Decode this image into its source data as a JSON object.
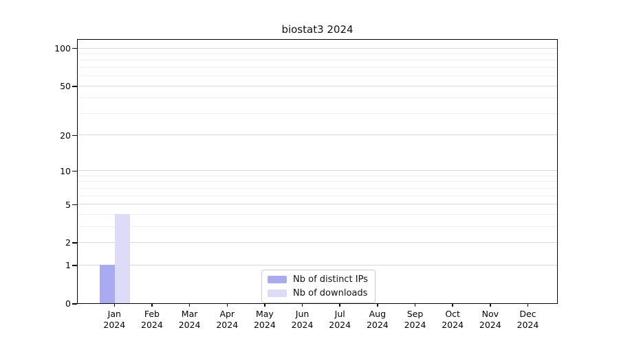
{
  "chart_data": {
    "type": "bar",
    "title": "biostat3 2024",
    "categories": [
      "Jan",
      "Feb",
      "Mar",
      "Apr",
      "May",
      "Jun",
      "Jul",
      "Aug",
      "Sep",
      "Oct",
      "Nov",
      "Dec"
    ],
    "category_year": "2024",
    "series": [
      {
        "name": "Nb of distinct IPs",
        "color": "#aaaaf2",
        "values": [
          1,
          0,
          0,
          0,
          0,
          0,
          0,
          0,
          0,
          0,
          0,
          0
        ]
      },
      {
        "name": "Nb of downloads",
        "color": "#dcdcf8",
        "values": [
          4,
          0,
          0,
          0,
          0,
          0,
          0,
          0,
          0,
          0,
          0,
          0
        ]
      }
    ],
    "xlabel": "",
    "ylabel": "",
    "y_axis": {
      "scale": "log1p",
      "major_ticks": [
        0,
        1,
        2,
        5,
        10,
        20,
        50,
        100
      ],
      "minor_gridlines": [
        3,
        4,
        6,
        7,
        8,
        9,
        30,
        40,
        60,
        70,
        80,
        90
      ],
      "ylim": [
        0,
        117
      ]
    },
    "grid": "horizontal",
    "legend_position": "bottom-center",
    "colors": {
      "major_grid": "#d7d7d7",
      "minor_grid": "#ededed",
      "axis": "#000000",
      "background": "#ffffff"
    }
  }
}
